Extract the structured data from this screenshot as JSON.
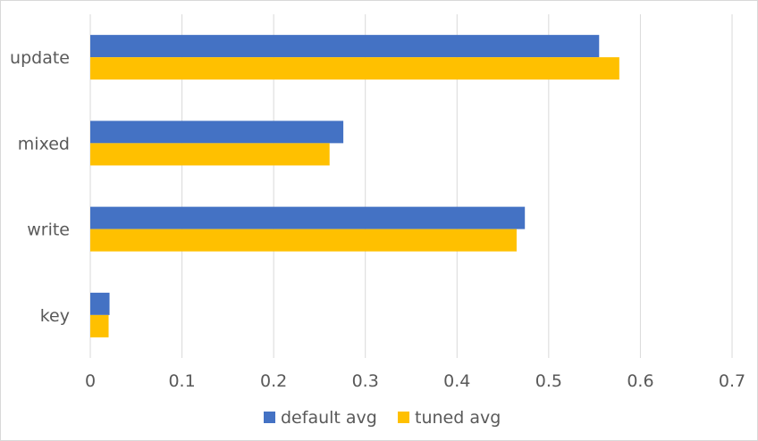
{
  "chart_data": {
    "type": "bar",
    "orientation": "horizontal",
    "categories": [
      "update",
      "mixed",
      "write",
      "key"
    ],
    "series": [
      {
        "name": "default avg",
        "values": [
          0.555,
          0.276,
          0.474,
          0.021
        ],
        "color": "#4472C4"
      },
      {
        "name": "tuned avg",
        "values": [
          0.577,
          0.261,
          0.465,
          0.02
        ],
        "color": "#FFC000"
      }
    ],
    "xticks": [
      "0",
      "0.1",
      "0.2",
      "0.3",
      "0.4",
      "0.5",
      "0.6",
      "0.7"
    ],
    "xlim": [
      0,
      0.7
    ],
    "grid": true,
    "legend_position": "bottom",
    "gridline_color": "#d9d9d9"
  }
}
